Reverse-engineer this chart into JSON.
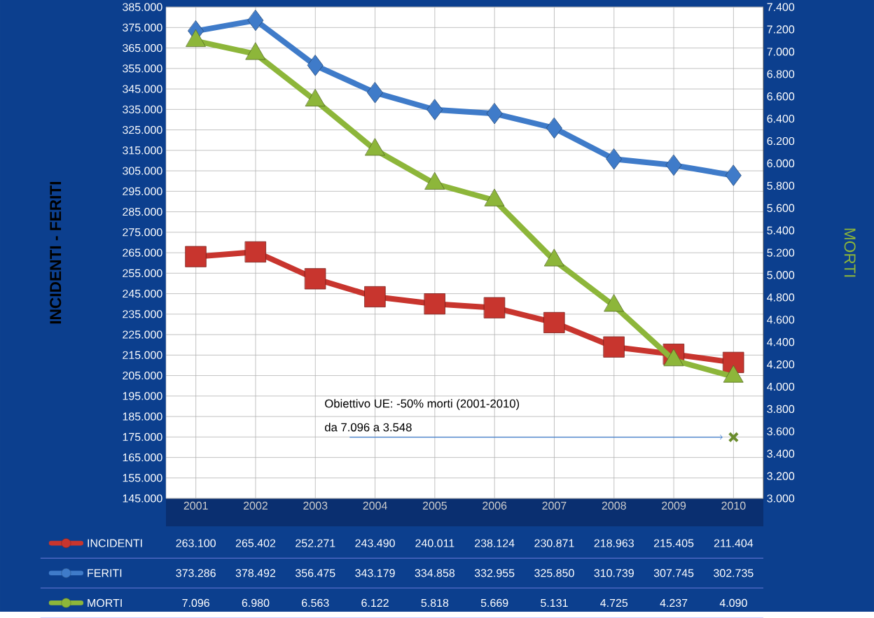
{
  "chart_data": {
    "type": "line",
    "ylabel": "INCIDENTI - FERITI",
    "y2label": "MORTI",
    "categories": [
      "2001",
      "2002",
      "2003",
      "2004",
      "2005",
      "2006",
      "2007",
      "2008",
      "2009",
      "2010"
    ],
    "series": [
      {
        "name": "INCIDENTI",
        "color": "#c8352e",
        "marker": "square",
        "values": [
          263100,
          265402,
          252271,
          243490,
          240011,
          238124,
          230871,
          218963,
          215405,
          211404
        ],
        "value_labels": [
          "263.100",
          "265.402",
          "252.271",
          "243.490",
          "240.011",
          "238.124",
          "230.871",
          "218.963",
          "215.405",
          "211.404"
        ]
      },
      {
        "name": "FERITI",
        "color": "#3f7bc9",
        "marker": "diamond",
        "values": [
          373286,
          378492,
          356475,
          343179,
          334858,
          332955,
          325850,
          310739,
          307745,
          302735
        ],
        "value_labels": [
          "373.286",
          "378.492",
          "356.475",
          "343.179",
          "334.858",
          "332.955",
          "325.850",
          "310.739",
          "307.745",
          "302.735"
        ]
      },
      {
        "name": "MORTI",
        "color": "#8db63a",
        "marker": "triangle",
        "axis": "y2",
        "values": [
          7096,
          6980,
          6563,
          6122,
          5818,
          5669,
          5131,
          4725,
          4237,
          4090
        ],
        "value_labels": [
          "7.096",
          "6.980",
          "6.563",
          "6.122",
          "5.818",
          "5.669",
          "5.131",
          "4.725",
          "4.237",
          "4.090"
        ]
      },
      {
        "type": "scatter",
        "color": "#6a8c2c",
        "marker": "cross",
        "axis": "y2",
        "values": [
          null,
          null,
          null,
          null,
          null,
          null,
          null,
          null,
          null,
          3548
        ]
      }
    ],
    "ylim": [
      145000,
      385000
    ],
    "yticks": [
      {
        "value": 145000,
        "label": "145.000"
      },
      {
        "value": 155000,
        "label": "155.000"
      },
      {
        "value": 165000,
        "label": "165.000"
      },
      {
        "value": 175000,
        "label": "175.000"
      },
      {
        "value": 185000,
        "label": "185.000"
      },
      {
        "value": 195000,
        "label": "195.000"
      },
      {
        "value": 205000,
        "label": "205.000"
      },
      {
        "value": 215000,
        "label": "215.000"
      },
      {
        "value": 225000,
        "label": "225.000"
      },
      {
        "value": 235000,
        "label": "235.000"
      },
      {
        "value": 245000,
        "label": "245.000"
      },
      {
        "value": 255000,
        "label": "255.000"
      },
      {
        "value": 265000,
        "label": "265.000"
      },
      {
        "value": 275000,
        "label": "275.000"
      },
      {
        "value": 285000,
        "label": "285.000"
      },
      {
        "value": 295000,
        "label": "295.000"
      },
      {
        "value": 305000,
        "label": "305.000"
      },
      {
        "value": 315000,
        "label": "315.000"
      },
      {
        "value": 325000,
        "label": "325.000"
      },
      {
        "value": 335000,
        "label": "335.000"
      },
      {
        "value": 345000,
        "label": "345.000"
      },
      {
        "value": 355000,
        "label": "355.000"
      },
      {
        "value": 365000,
        "label": "365.000"
      },
      {
        "value": 375000,
        "label": "375.000"
      },
      {
        "value": 385000,
        "label": "385.000"
      }
    ],
    "y2lim": [
      3000,
      7400
    ],
    "y2ticks": [
      {
        "value": 3000,
        "label": "3.000"
      },
      {
        "value": 3200,
        "label": "3.200"
      },
      {
        "value": 3400,
        "label": "3.400"
      },
      {
        "value": 3600,
        "label": "3.600"
      },
      {
        "value": 3800,
        "label": "3.800"
      },
      {
        "value": 4000,
        "label": "4.000"
      },
      {
        "value": 4200,
        "label": "4.200"
      },
      {
        "value": 4400,
        "label": "4.400"
      },
      {
        "value": 4600,
        "label": "4.600"
      },
      {
        "value": 4800,
        "label": "4.800"
      },
      {
        "value": 5000,
        "label": "5.000"
      },
      {
        "value": 5200,
        "label": "5.200"
      },
      {
        "value": 5400,
        "label": "5.400"
      },
      {
        "value": 5600,
        "label": "5.600"
      },
      {
        "value": 5800,
        "label": "5.800"
      },
      {
        "value": 6000,
        "label": "6.000"
      },
      {
        "value": 6200,
        "label": "6.200"
      },
      {
        "value": 6400,
        "label": "6.400"
      },
      {
        "value": 6600,
        "label": "6.600"
      },
      {
        "value": 6800,
        "label": "6.800"
      },
      {
        "value": 7000,
        "label": "7.000"
      },
      {
        "value": 7200,
        "label": "7.200"
      },
      {
        "value": 7400,
        "label": "7.400"
      }
    ],
    "grid": true,
    "legend": "bottom",
    "line_style": "solid",
    "annotations": [
      "Obiettivo UE: -50% morti (2001-2010)",
      "da 7.096 a 3.548"
    ]
  }
}
